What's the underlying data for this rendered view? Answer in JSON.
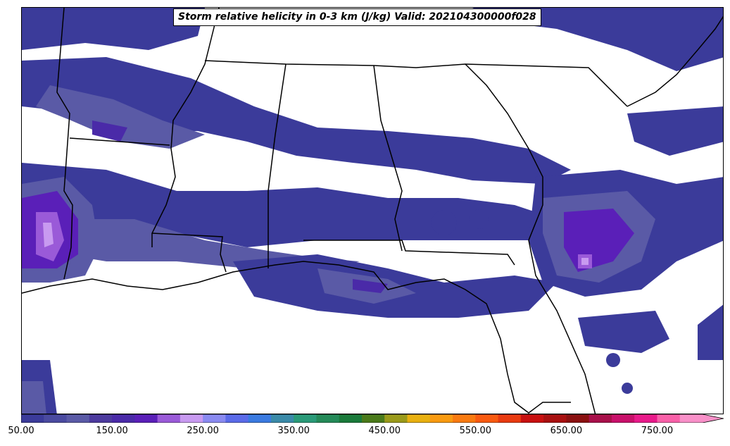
{
  "title": "Storm relative helicity in 0-3 km (J/kg) Valid: 202104300000f028",
  "colorbar": {
    "colors": [
      "#3b3b9a",
      "#4a4aa0",
      "#5a5aa6",
      "#4c3a9e",
      "#4a2aa8",
      "#5a1fb8",
      "#9a5ad8",
      "#c89af0",
      "#8a8af0",
      "#5a6ae8",
      "#3a7ae0",
      "#3a8aa8",
      "#2a9a78",
      "#248a58",
      "#1a7a3a",
      "#4a7a1a",
      "#9a9a1a",
      "#e8b010",
      "#f89a10",
      "#f87a10",
      "#f85a10",
      "#e83a10",
      "#c81010",
      "#a81010",
      "#8a1010",
      "#a8104a",
      "#c8106a",
      "#e81a8a",
      "#f860a8",
      "#f890c8"
    ],
    "tick_labels": [
      "50.00",
      "150.00",
      "250.00",
      "350.00",
      "450.00",
      "550.00",
      "650.00",
      "750.00"
    ],
    "extend": "max"
  },
  "map": {
    "fill_levels": {
      "low": "#3b3b9a",
      "mid": "#5a5aa6",
      "high": "#5a1fb8",
      "peak": "#9a5ad8",
      "max": "#c89af0"
    }
  }
}
